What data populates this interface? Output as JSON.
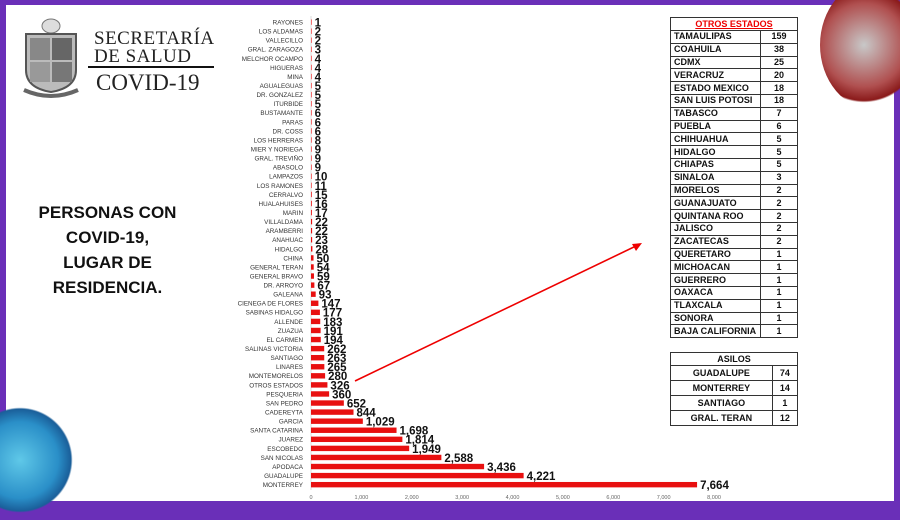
{
  "brand": {
    "line1": "SECRETARÍA",
    "line1b": "DE SALUD",
    "line2": "COVID-19",
    "seal": "Nuevo León coat of arms"
  },
  "heading": [
    "PERSONAS CON",
    "COVID-19,",
    "LUGAR DE",
    "RESIDENCIA."
  ],
  "chart_data": {
    "type": "bar",
    "orientation": "horizontal",
    "categories": [
      "RAYONES",
      "LOS ALDAMAS",
      "VALLECILLO",
      "GRAL. ZARAGOZA",
      "MELCHOR OCAMPO",
      "HIGUERAS",
      "MINA",
      "AGUALEGUAS",
      "DR. GONZALEZ",
      "ITURBIDE",
      "BUSTAMANTE",
      "PARAS",
      "DR. COSS",
      "LOS HERRERAS",
      "MIER Y NORIEGA",
      "GRAL. TREVIÑO",
      "ABASOLO",
      "LAMPAZOS",
      "LOS RAMONES",
      "CERRALVO",
      "HUALAHUISES",
      "MARIN",
      "VILLALDAMA",
      "ARAMBERRI",
      "ANAHUAC",
      "HIDALGO",
      "CHINA",
      "GENERAL TERAN",
      "GENERAL BRAVO",
      "DR. ARROYO",
      "GALEANA",
      "CIENEGA DE FLORES",
      "SABINAS HIDALGO",
      "ALLENDE",
      "ZUAZUA",
      "EL CARMEN",
      "SALINAS VICTORIA",
      "SANTIAGO",
      "LINARES",
      "MONTEMORELOS",
      "OTROS ESTADOS",
      "PESQUERIA",
      "SAN PEDRO",
      "CADEREYTA",
      "GARCIA",
      "SANTA CATARINA",
      "JUAREZ",
      "ESCOBEDO",
      "SAN NICOLAS",
      "APODACA",
      "GUADALUPE",
      "MONTERREY"
    ],
    "values": [
      1,
      2,
      2,
      3,
      4,
      4,
      4,
      5,
      5,
      5,
      6,
      6,
      6,
      8,
      9,
      9,
      9,
      10,
      11,
      15,
      16,
      17,
      22,
      22,
      23,
      28,
      50,
      54,
      59,
      67,
      93,
      147,
      177,
      183,
      191,
      194,
      262,
      263,
      265,
      280,
      326,
      360,
      652,
      844,
      1029,
      1698,
      1814,
      1949,
      2588,
      3436,
      4221,
      7664
    ],
    "value_labels": [
      "1",
      "2",
      "2",
      "3",
      "4",
      "4",
      "4",
      "5",
      "5",
      "5",
      "6",
      "6",
      "6",
      "8",
      "9",
      "9",
      "9",
      "10",
      "11",
      "15",
      "16",
      "17",
      "22",
      "22",
      "23",
      "28",
      "50",
      "54",
      "59",
      "67",
      "93",
      "147",
      "177",
      "183",
      "191",
      "194",
      "262",
      "263",
      "265",
      "280",
      "326",
      "360",
      "652",
      "844",
      "1,029",
      "1,698",
      "1,814",
      "1,949",
      "2,588",
      "3,436",
      "4,221",
      "7,664"
    ],
    "xlim": [
      0,
      8000
    ],
    "xticks": [
      "0",
      "1,000",
      "2,000",
      "3,000",
      "4,000",
      "5,000",
      "6,000",
      "7,000",
      "8,000"
    ],
    "bar_color": "#e81010",
    "annotation": "arrow from OTROS ESTADOS to table"
  },
  "otros_estados": {
    "title": "OTROS ESTADOS",
    "rows": [
      [
        "TAMAULIPAS",
        "159"
      ],
      [
        "COAHUILA",
        "38"
      ],
      [
        "CDMX",
        "25"
      ],
      [
        "VERACRUZ",
        "20"
      ],
      [
        "ESTADO MEXICO",
        "18"
      ],
      [
        "SAN LUIS POTOSI",
        "18"
      ],
      [
        "TABASCO",
        "7"
      ],
      [
        "PUEBLA",
        "6"
      ],
      [
        "CHIHUAHUA",
        "5"
      ],
      [
        "HIDALGO",
        "5"
      ],
      [
        "CHIAPAS",
        "5"
      ],
      [
        "SINALOA",
        "3"
      ],
      [
        "MORELOS",
        "2"
      ],
      [
        "GUANAJUATO",
        "2"
      ],
      [
        "QUINTANA ROO",
        "2"
      ],
      [
        "JALISCO",
        "2"
      ],
      [
        "ZACATECAS",
        "2"
      ],
      [
        "QUERETARO",
        "1"
      ],
      [
        "MICHOACAN",
        "1"
      ],
      [
        "GUERRERO",
        "1"
      ],
      [
        "OAXACA",
        "1"
      ],
      [
        "TLAXCALA",
        "1"
      ],
      [
        "SONORA",
        "1"
      ],
      [
        "BAJA CALIFORNIA",
        "1"
      ]
    ]
  },
  "asilos": {
    "title": "ASILOS",
    "rows": [
      [
        "GUADALUPE",
        "74"
      ],
      [
        "MONTERREY",
        "14"
      ],
      [
        "SANTIAGO",
        "1"
      ],
      [
        "GRAL. TERAN",
        "12"
      ]
    ]
  },
  "colors": {
    "frame": "#6a2fb8",
    "bars": "#e81010",
    "title_red": "#e00000"
  }
}
